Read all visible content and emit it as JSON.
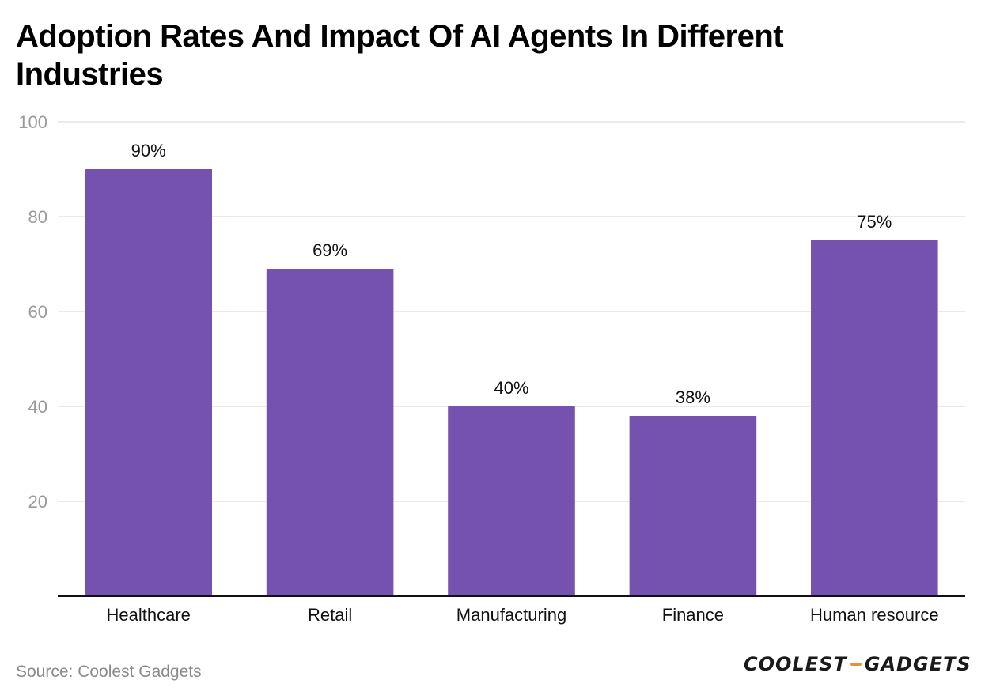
{
  "chart_data": {
    "type": "bar",
    "title": "Adoption Rates And Impact Of AI Agents In Different Industries",
    "categories": [
      "Healthcare",
      "Retail",
      "Manufacturing",
      "Finance",
      "Human resource"
    ],
    "values": [
      90,
      69,
      40,
      38,
      75
    ],
    "data_labels": [
      "90%",
      "69%",
      "40%",
      "38%",
      "75%"
    ],
    "ylim": [
      0,
      100
    ],
    "yticks": [
      20,
      40,
      60,
      80,
      100
    ],
    "xlabel": "",
    "ylabel": "",
    "grid": true,
    "legend": "none",
    "bar_color": "#7652b0"
  },
  "footer": {
    "source": "Source: Coolest Gadgets",
    "logo_left": "COOLEST",
    "logo_right": "GADGETS",
    "logo_dash_color": "#e8903a"
  }
}
